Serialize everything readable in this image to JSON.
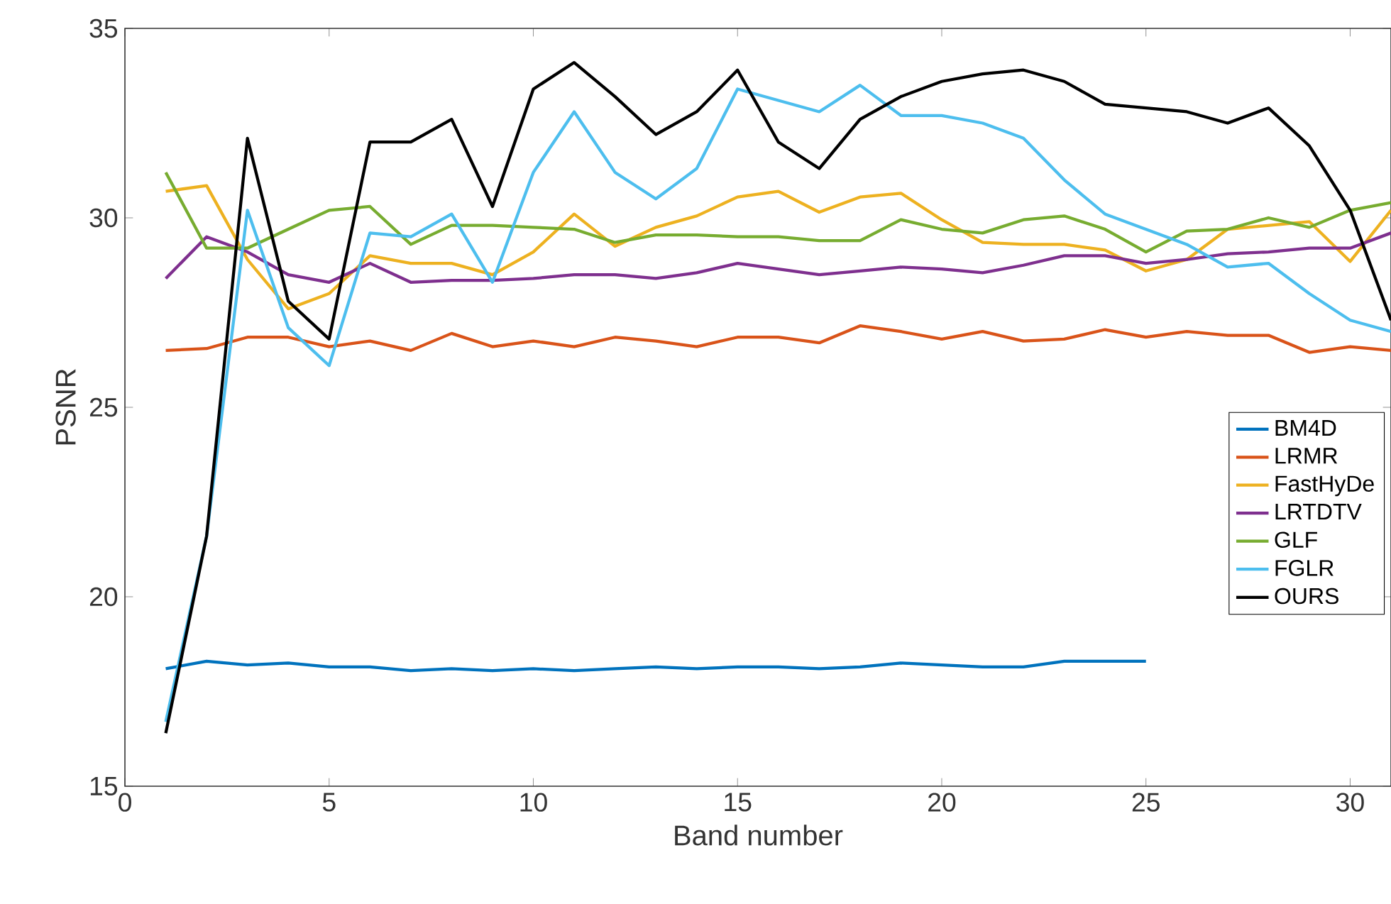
{
  "chart_data": {
    "type": "line",
    "xlabel": "Band number",
    "ylabel": "PSNR",
    "x": [
      1,
      2,
      3,
      4,
      5,
      6,
      7,
      8,
      9,
      10,
      11,
      12,
      13,
      14,
      15,
      16,
      17,
      18,
      19,
      20,
      21,
      22,
      23,
      24,
      25,
      26,
      27,
      28,
      29,
      30,
      31
    ],
    "xlim": [
      0,
      31
    ],
    "ylim": [
      15,
      35
    ],
    "xticks": [
      0,
      5,
      10,
      15,
      20,
      25,
      30
    ],
    "yticks": [
      15,
      20,
      25,
      30,
      35
    ],
    "grid": false,
    "legend": "right",
    "series": [
      {
        "name": "BM4D",
        "color": "#0072bd",
        "values": [
          18.1,
          18.3,
          18.2,
          18.25,
          18.15,
          18.15,
          18.05,
          18.1,
          18.05,
          18.1,
          18.05,
          18.1,
          18.15,
          18.1,
          18.15,
          18.15,
          18.1,
          18.15,
          18.25,
          18.2,
          18.15,
          18.15,
          18.3,
          18.3,
          18.3,
          null,
          null,
          null,
          null,
          null,
          null
        ]
      },
      {
        "name": "LRMR",
        "color": "#d95319",
        "values": [
          26.5,
          26.55,
          26.85,
          26.85,
          26.6,
          26.75,
          26.5,
          26.95,
          26.6,
          26.75,
          26.6,
          26.85,
          26.75,
          26.6,
          26.85,
          26.85,
          26.7,
          27.15,
          27.0,
          26.8,
          27.0,
          26.75,
          26.8,
          27.05,
          26.85,
          27.0,
          26.9,
          26.9,
          26.45,
          26.6,
          26.5
        ]
      },
      {
        "name": "FastHyDe",
        "color": "#edb120",
        "values": [
          30.7,
          30.85,
          28.9,
          27.6,
          28.0,
          29.0,
          28.8,
          28.8,
          28.5,
          29.1,
          30.1,
          29.25,
          29.75,
          30.05,
          30.55,
          30.7,
          30.15,
          30.55,
          30.65,
          29.95,
          29.35,
          29.3,
          29.3,
          29.15,
          28.6,
          28.9,
          29.7,
          29.8,
          29.9,
          28.85,
          30.2
        ]
      },
      {
        "name": "LRTDTV",
        "color": "#7e2f8e",
        "values": [
          28.4,
          29.5,
          29.1,
          28.5,
          28.3,
          28.8,
          28.3,
          28.35,
          28.35,
          28.4,
          28.5,
          28.5,
          28.4,
          28.55,
          28.8,
          28.65,
          28.5,
          28.6,
          28.7,
          28.65,
          28.55,
          28.75,
          29.0,
          29.0,
          28.8,
          28.9,
          29.05,
          29.1,
          29.2,
          29.2,
          29.6
        ]
      },
      {
        "name": "GLF",
        "color": "#77ac30",
        "values": [
          31.2,
          29.2,
          29.2,
          29.7,
          30.2,
          30.3,
          29.3,
          29.8,
          29.8,
          29.75,
          29.7,
          29.35,
          29.55,
          29.55,
          29.5,
          29.5,
          29.4,
          29.4,
          29.95,
          29.7,
          29.6,
          29.95,
          30.05,
          29.7,
          29.1,
          29.65,
          29.7,
          30.0,
          29.75,
          30.2,
          30.4
        ]
      },
      {
        "name": "FGLR",
        "color": "#4dbeee",
        "values": [
          16.7,
          21.6,
          30.2,
          27.1,
          26.1,
          29.6,
          29.5,
          30.1,
          28.3,
          31.2,
          32.8,
          31.2,
          30.5,
          31.3,
          33.4,
          33.1,
          32.8,
          33.5,
          32.7,
          32.7,
          32.5,
          32.1,
          31.0,
          30.1,
          29.7,
          29.3,
          28.7,
          28.8,
          28.0,
          27.3,
          27.0
        ]
      },
      {
        "name": "OURS",
        "color": "#000000",
        "values": [
          16.4,
          21.6,
          32.1,
          27.8,
          26.8,
          32.0,
          32.0,
          32.6,
          30.3,
          33.4,
          34.1,
          33.2,
          32.2,
          32.8,
          33.9,
          32.0,
          31.3,
          32.6,
          33.2,
          33.6,
          33.8,
          33.9,
          33.6,
          33.0,
          32.9,
          32.8,
          32.5,
          32.9,
          31.9,
          30.2,
          27.3
        ]
      }
    ]
  }
}
